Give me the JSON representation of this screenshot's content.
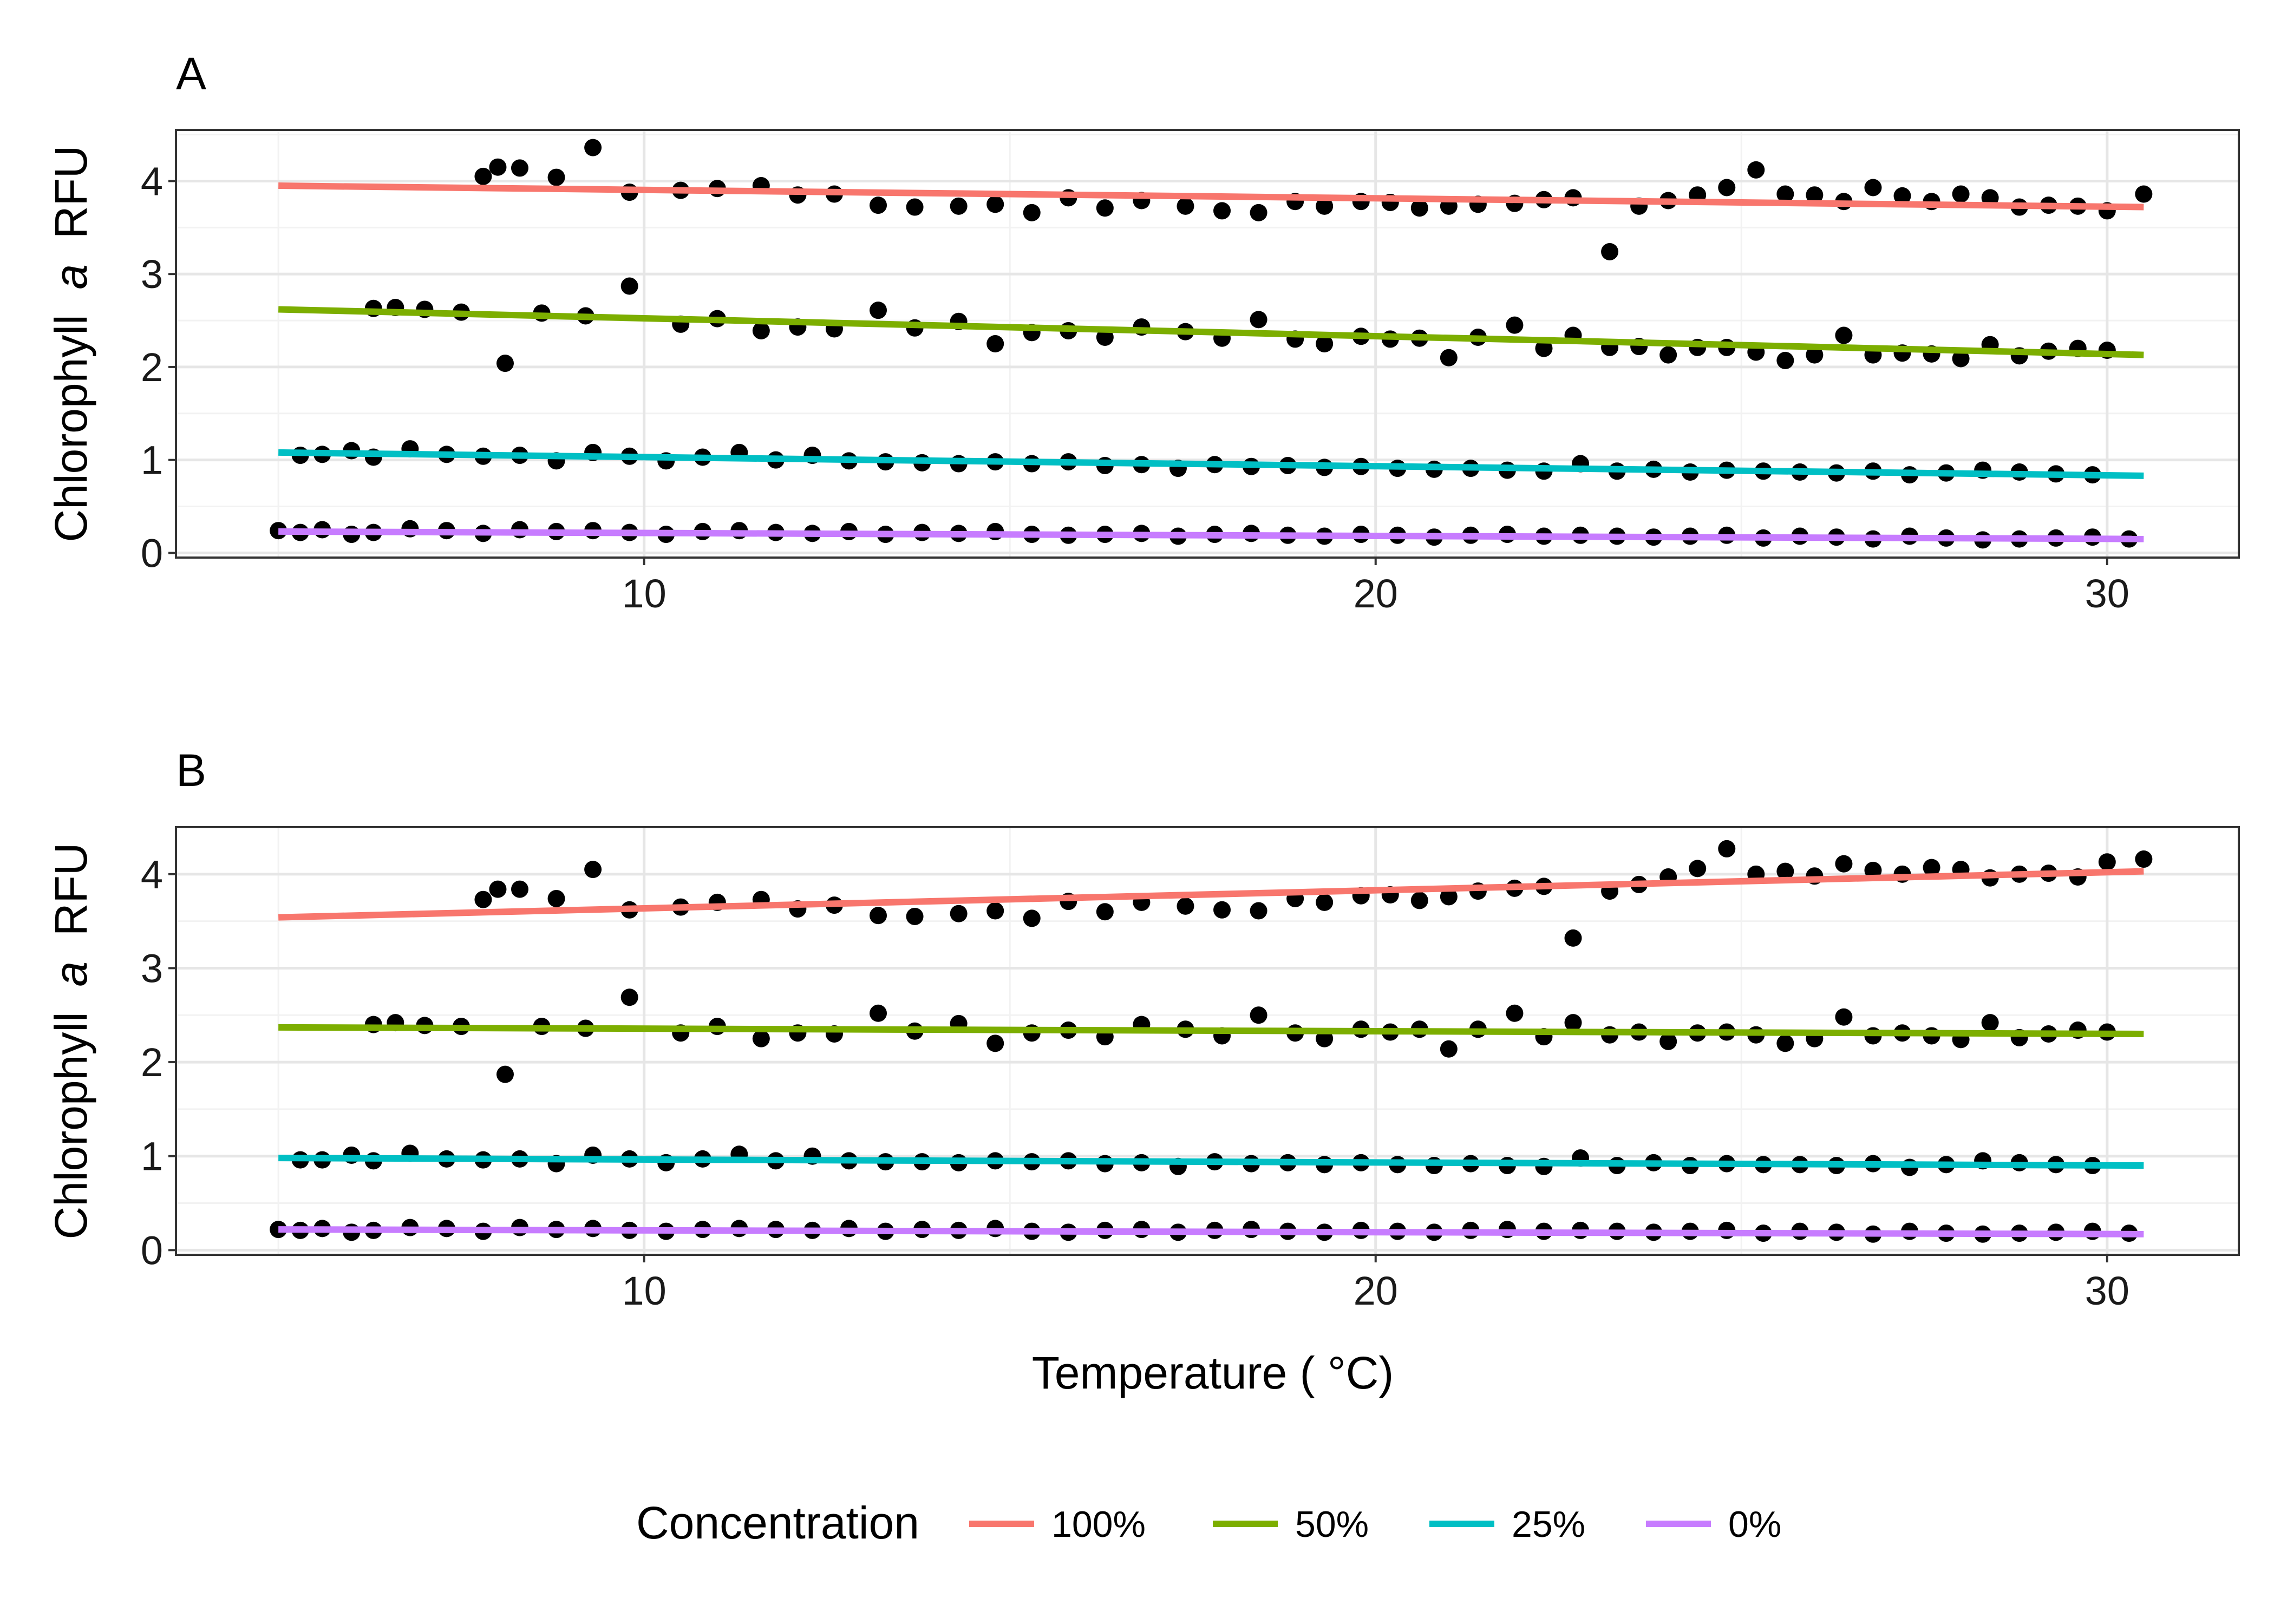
{
  "legend": {
    "title": "Concentration",
    "items": [
      {
        "label": "100%",
        "color": "#F8766D"
      },
      {
        "label": "50%",
        "color": "#7CAE00"
      },
      {
        "label": "25%",
        "color": "#00BFC4"
      },
      {
        "label": "0%",
        "color": "#C77CFF"
      }
    ]
  },
  "chart_data": [
    {
      "type": "scatter",
      "title": "A",
      "xlabel": "Temperature ( °C)",
      "ylabel": "Chlorophyll a RFU",
      "ylabel_parts": [
        "Chlorophyll",
        "a",
        "RFU"
      ],
      "xlim": [
        3.6,
        31.8
      ],
      "ylim": [
        -0.05,
        4.55
      ],
      "x_ticks": [
        10,
        20,
        30
      ],
      "y_ticks": [
        0,
        1,
        2,
        3,
        4
      ],
      "x_axis_visible": true,
      "grid": true,
      "legend_placement": "bottom",
      "fit_lines": [
        {
          "name": "100%",
          "color": "#F8766D",
          "x": [
            5.0,
            30.5
          ],
          "y": [
            3.95,
            3.72
          ]
        },
        {
          "name": "50%",
          "color": "#7CAE00",
          "x": [
            5.0,
            30.5
          ],
          "y": [
            2.62,
            2.13
          ]
        },
        {
          "name": "25%",
          "color": "#00BFC4",
          "x": [
            5.0,
            30.5
          ],
          "y": [
            1.08,
            0.83
          ]
        },
        {
          "name": "0%",
          "color": "#C77CFF",
          "x": [
            5.0,
            30.5
          ],
          "y": [
            0.23,
            0.15
          ]
        }
      ],
      "points": [
        {
          "series": "100%",
          "x": [
            7.8,
            8.0,
            8.3,
            8.8,
            9.3,
            9.8,
            10.5,
            11.0,
            11.6,
            12.1,
            12.6,
            13.2,
            13.7,
            14.3,
            14.8,
            15.3,
            15.8,
            16.3,
            16.8,
            17.4,
            17.9,
            18.4,
            18.9,
            19.3,
            19.8,
            20.2,
            20.6,
            21.0,
            21.4,
            21.9,
            22.3,
            22.7,
            23.2,
            23.6,
            24.0,
            24.4,
            24.8,
            25.2,
            25.6,
            26.0,
            26.4,
            26.8,
            27.2,
            27.6,
            28.0,
            28.4,
            28.8,
            29.2,
            29.6,
            30.0,
            30.5
          ],
          "y": [
            4.05,
            4.15,
            4.14,
            4.04,
            4.36,
            3.88,
            3.9,
            3.92,
            3.95,
            3.85,
            3.86,
            3.74,
            3.72,
            3.73,
            3.75,
            3.66,
            3.82,
            3.71,
            3.79,
            3.73,
            3.68,
            3.66,
            3.78,
            3.73,
            3.78,
            3.77,
            3.71,
            3.73,
            3.75,
            3.76,
            3.8,
            3.82,
            3.24,
            3.73,
            3.79,
            3.85,
            3.93,
            4.12,
            3.86,
            3.85,
            3.78,
            3.93,
            3.84,
            3.78,
            3.86,
            3.82,
            3.72,
            3.74,
            3.73,
            3.68,
            3.86
          ]
        },
        {
          "series": "50%",
          "x": [
            6.3,
            6.6,
            7.0,
            7.5,
            8.1,
            8.6,
            9.2,
            9.8,
            10.5,
            11.0,
            11.6,
            12.1,
            12.6,
            13.2,
            13.7,
            14.3,
            14.8,
            15.3,
            15.8,
            16.3,
            16.8,
            17.4,
            17.9,
            18.4,
            18.9,
            19.3,
            19.8,
            20.2,
            20.6,
            21.0,
            21.4,
            21.9,
            22.3,
            22.7,
            23.2,
            23.6,
            24.0,
            24.4,
            24.8,
            25.2,
            25.6,
            26.0,
            26.4,
            26.8,
            27.2,
            27.6,
            28.0,
            28.4,
            28.8,
            29.2,
            29.6,
            30.0
          ],
          "y": [
            2.63,
            2.64,
            2.62,
            2.59,
            2.04,
            2.58,
            2.55,
            2.87,
            2.46,
            2.52,
            2.39,
            2.43,
            2.41,
            2.61,
            2.42,
            2.49,
            2.25,
            2.37,
            2.39,
            2.32,
            2.43,
            2.38,
            2.31,
            2.51,
            2.3,
            2.25,
            2.33,
            2.3,
            2.31,
            2.1,
            2.32,
            2.45,
            2.2,
            2.34,
            2.21,
            2.22,
            2.13,
            2.21,
            2.21,
            2.16,
            2.07,
            2.13,
            2.34,
            2.13,
            2.15,
            2.14,
            2.09,
            2.24,
            2.12,
            2.17,
            2.2,
            2.18
          ]
        },
        {
          "series": "25%",
          "x": [
            5.3,
            5.6,
            6.0,
            6.3,
            6.8,
            7.3,
            7.8,
            8.3,
            8.8,
            9.3,
            9.8,
            10.3,
            10.8,
            11.3,
            11.8,
            12.3,
            12.8,
            13.3,
            13.8,
            14.3,
            14.8,
            15.3,
            15.8,
            16.3,
            16.8,
            17.3,
            17.8,
            18.3,
            18.8,
            19.3,
            19.8,
            20.3,
            20.8,
            21.3,
            21.8,
            22.3,
            22.8,
            23.3,
            23.8,
            24.3,
            24.8,
            25.3,
            25.8,
            26.3,
            26.8,
            27.3,
            27.8,
            28.3,
            28.8,
            29.3,
            29.8
          ],
          "y": [
            1.05,
            1.06,
            1.1,
            1.03,
            1.12,
            1.06,
            1.04,
            1.05,
            0.99,
            1.08,
            1.04,
            0.99,
            1.03,
            1.08,
            1.0,
            1.05,
            0.99,
            0.98,
            0.97,
            0.96,
            0.98,
            0.96,
            0.98,
            0.94,
            0.95,
            0.91,
            0.95,
            0.93,
            0.94,
            0.92,
            0.93,
            0.91,
            0.9,
            0.91,
            0.89,
            0.88,
            0.96,
            0.88,
            0.9,
            0.87,
            0.89,
            0.88,
            0.87,
            0.86,
            0.88,
            0.84,
            0.86,
            0.89,
            0.87,
            0.85,
            0.84
          ]
        },
        {
          "series": "0%",
          "x": [
            5.0,
            5.3,
            5.6,
            6.0,
            6.3,
            6.8,
            7.3,
            7.8,
            8.3,
            8.8,
            9.3,
            9.8,
            10.3,
            10.8,
            11.3,
            11.8,
            12.3,
            12.8,
            13.3,
            13.8,
            14.3,
            14.8,
            15.3,
            15.8,
            16.3,
            16.8,
            17.3,
            17.8,
            18.3,
            18.8,
            19.3,
            19.8,
            20.3,
            20.8,
            21.3,
            21.8,
            22.3,
            22.8,
            23.3,
            23.8,
            24.3,
            24.8,
            25.3,
            25.8,
            26.3,
            26.8,
            27.3,
            27.8,
            28.3,
            28.8,
            29.3,
            29.8,
            30.3
          ],
          "y": [
            0.24,
            0.22,
            0.25,
            0.2,
            0.22,
            0.26,
            0.24,
            0.21,
            0.25,
            0.23,
            0.24,
            0.22,
            0.2,
            0.23,
            0.24,
            0.22,
            0.21,
            0.23,
            0.2,
            0.22,
            0.21,
            0.23,
            0.2,
            0.19,
            0.2,
            0.21,
            0.18,
            0.2,
            0.21,
            0.19,
            0.18,
            0.2,
            0.19,
            0.17,
            0.19,
            0.2,
            0.18,
            0.19,
            0.18,
            0.17,
            0.18,
            0.19,
            0.16,
            0.18,
            0.17,
            0.15,
            0.18,
            0.16,
            0.14,
            0.15,
            0.16,
            0.17,
            0.15
          ]
        }
      ]
    },
    {
      "type": "scatter",
      "title": "B",
      "xlabel": "Temperature ( °C)",
      "ylabel": "Chlorophyll a RFU",
      "ylabel_parts": [
        "Chlorophyll",
        "a",
        "RFU"
      ],
      "xlim": [
        3.6,
        31.8
      ],
      "ylim": [
        -0.05,
        4.5
      ],
      "x_ticks": [
        10,
        20,
        30
      ],
      "y_ticks": [
        0,
        1,
        2,
        3,
        4
      ],
      "x_axis_visible": true,
      "grid": true,
      "legend_placement": "bottom",
      "fit_lines": [
        {
          "name": "100%",
          "color": "#F8766D",
          "x": [
            5.0,
            30.5
          ],
          "y": [
            3.54,
            4.03
          ]
        },
        {
          "name": "50%",
          "color": "#7CAE00",
          "x": [
            5.0,
            30.5
          ],
          "y": [
            2.37,
            2.3
          ]
        },
        {
          "name": "25%",
          "color": "#00BFC4",
          "x": [
            5.0,
            30.5
          ],
          "y": [
            0.98,
            0.9
          ]
        },
        {
          "name": "0%",
          "color": "#C77CFF",
          "x": [
            5.0,
            30.5
          ],
          "y": [
            0.22,
            0.17
          ]
        }
      ],
      "points": [
        {
          "series": "100%",
          "x": [
            7.8,
            8.0,
            8.3,
            8.8,
            9.3,
            9.8,
            10.5,
            11.0,
            11.6,
            12.1,
            12.6,
            13.2,
            13.7,
            14.3,
            14.8,
            15.3,
            15.8,
            16.3,
            16.8,
            17.4,
            17.9,
            18.4,
            18.9,
            19.3,
            19.8,
            20.2,
            20.6,
            21.0,
            21.4,
            21.9,
            22.3,
            22.7,
            23.2,
            23.6,
            24.0,
            24.4,
            24.8,
            25.2,
            25.6,
            26.0,
            26.4,
            26.8,
            27.2,
            27.6,
            28.0,
            28.4,
            28.8,
            29.2,
            29.6,
            30.0,
            30.5
          ],
          "y": [
            3.73,
            3.84,
            3.84,
            3.74,
            4.05,
            3.62,
            3.65,
            3.7,
            3.73,
            3.63,
            3.67,
            3.56,
            3.55,
            3.58,
            3.61,
            3.53,
            3.71,
            3.6,
            3.7,
            3.66,
            3.62,
            3.61,
            3.74,
            3.7,
            3.77,
            3.78,
            3.72,
            3.76,
            3.82,
            3.85,
            3.87,
            3.32,
            3.82,
            3.89,
            3.97,
            4.06,
            4.27,
            4.0,
            4.03,
            3.98,
            4.11,
            4.04,
            4.0,
            4.07,
            4.05,
            3.96,
            4.0,
            4.01,
            3.97,
            4.13,
            4.16
          ]
        },
        {
          "series": "50%",
          "x": [
            6.3,
            6.6,
            7.0,
            7.5,
            8.1,
            8.6,
            9.2,
            9.8,
            10.5,
            11.0,
            11.6,
            12.1,
            12.6,
            13.2,
            13.7,
            14.3,
            14.8,
            15.3,
            15.8,
            16.3,
            16.8,
            17.4,
            17.9,
            18.4,
            18.9,
            19.3,
            19.8,
            20.2,
            20.6,
            21.0,
            21.4,
            21.9,
            22.3,
            22.7,
            23.2,
            23.6,
            24.0,
            24.4,
            24.8,
            25.2,
            25.6,
            26.0,
            26.4,
            26.8,
            27.2,
            27.6,
            28.0,
            28.4,
            28.8,
            29.2,
            29.6,
            30.0
          ],
          "y": [
            2.4,
            2.42,
            2.39,
            2.38,
            1.87,
            2.38,
            2.36,
            2.69,
            2.31,
            2.38,
            2.25,
            2.31,
            2.3,
            2.52,
            2.33,
            2.41,
            2.2,
            2.31,
            2.34,
            2.27,
            2.4,
            2.35,
            2.28,
            2.5,
            2.31,
            2.25,
            2.35,
            2.32,
            2.35,
            2.14,
            2.35,
            2.52,
            2.27,
            2.42,
            2.29,
            2.32,
            2.22,
            2.31,
            2.32,
            2.29,
            2.2,
            2.25,
            2.48,
            2.28,
            2.31,
            2.28,
            2.24,
            2.42,
            2.26,
            2.3,
            2.34,
            2.32
          ]
        },
        {
          "series": "25%",
          "x": [
            5.3,
            5.6,
            6.0,
            6.3,
            6.8,
            7.3,
            7.8,
            8.3,
            8.8,
            9.3,
            9.8,
            10.3,
            10.8,
            11.3,
            11.8,
            12.3,
            12.8,
            13.3,
            13.8,
            14.3,
            14.8,
            15.3,
            15.8,
            16.3,
            16.8,
            17.3,
            17.8,
            18.3,
            18.8,
            19.3,
            19.8,
            20.3,
            20.8,
            21.3,
            21.8,
            22.3,
            22.8,
            23.3,
            23.8,
            24.3,
            24.8,
            25.3,
            25.8,
            26.3,
            26.8,
            27.3,
            27.8,
            28.3,
            28.8,
            29.3,
            29.8
          ],
          "y": [
            0.96,
            0.96,
            1.01,
            0.95,
            1.03,
            0.97,
            0.96,
            0.97,
            0.92,
            1.01,
            0.97,
            0.93,
            0.97,
            1.02,
            0.95,
            1.0,
            0.95,
            0.94,
            0.94,
            0.93,
            0.95,
            0.94,
            0.95,
            0.92,
            0.93,
            0.89,
            0.94,
            0.92,
            0.93,
            0.91,
            0.93,
            0.91,
            0.9,
            0.92,
            0.9,
            0.89,
            0.98,
            0.9,
            0.93,
            0.9,
            0.92,
            0.91,
            0.91,
            0.9,
            0.92,
            0.88,
            0.91,
            0.95,
            0.93,
            0.91,
            0.9
          ]
        },
        {
          "series": "0%",
          "x": [
            5.0,
            5.3,
            5.6,
            6.0,
            6.3,
            6.8,
            7.3,
            7.8,
            8.3,
            8.8,
            9.3,
            9.8,
            10.3,
            10.8,
            11.3,
            11.8,
            12.3,
            12.8,
            13.3,
            13.8,
            14.3,
            14.8,
            15.3,
            15.8,
            16.3,
            16.8,
            17.3,
            17.8,
            18.3,
            18.8,
            19.3,
            19.8,
            20.3,
            20.8,
            21.3,
            21.8,
            22.3,
            22.8,
            23.3,
            23.8,
            24.3,
            24.8,
            25.3,
            25.8,
            26.3,
            26.8,
            27.3,
            27.8,
            28.3,
            28.8,
            29.3,
            29.8,
            30.3
          ],
          "y": [
            0.22,
            0.21,
            0.23,
            0.19,
            0.21,
            0.24,
            0.23,
            0.2,
            0.24,
            0.22,
            0.23,
            0.21,
            0.2,
            0.22,
            0.23,
            0.22,
            0.21,
            0.23,
            0.2,
            0.22,
            0.21,
            0.23,
            0.2,
            0.19,
            0.21,
            0.22,
            0.19,
            0.21,
            0.22,
            0.2,
            0.19,
            0.21,
            0.2,
            0.19,
            0.21,
            0.22,
            0.2,
            0.21,
            0.2,
            0.19,
            0.2,
            0.21,
            0.18,
            0.2,
            0.19,
            0.17,
            0.2,
            0.18,
            0.17,
            0.18,
            0.19,
            0.2,
            0.18
          ]
        }
      ]
    }
  ]
}
